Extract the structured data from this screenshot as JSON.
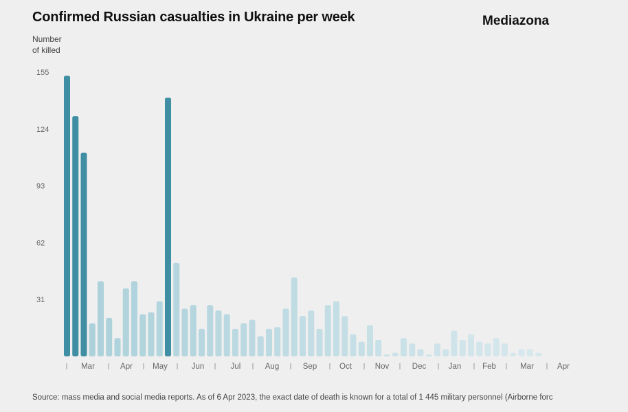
{
  "title": "Confirmed Russian casualties in Ukraine per week",
  "brand": "Mediazona",
  "y_axis_label": [
    "Number",
    "of killed"
  ],
  "footer": "Source: mass media and social media reports. As of 6 Apr 2023, the exact date of death is known for a total of 1 445 military personnel (Airborne forc",
  "colors": {
    "dark": "#3f8ea3",
    "background": "#efefef",
    "tick_text": "#666"
  },
  "chart_data": {
    "type": "bar",
    "ylabel": "Number of killed",
    "ylim": [
      0,
      155
    ],
    "yticks": [
      31,
      62,
      93,
      124,
      155
    ],
    "months": [
      "Mar",
      "Apr",
      "May",
      "Jun",
      "Jul",
      "Aug",
      "Sep",
      "Oct",
      "Nov",
      "Dec",
      "Jan",
      "Feb",
      "Mar",
      "Apr"
    ],
    "values": [
      153,
      131,
      111,
      18,
      41,
      21,
      10,
      37,
      41,
      23,
      24,
      30,
      141,
      51,
      26,
      28,
      15,
      28,
      25,
      23,
      15,
      18,
      20,
      11,
      15,
      16,
      26,
      43,
      22,
      25,
      15,
      28,
      30,
      22,
      12,
      8,
      17,
      9,
      1,
      2,
      10,
      7,
      4,
      1,
      7,
      4,
      14,
      9,
      12,
      8,
      7,
      10,
      7,
      2,
      4,
      4,
      2,
      0,
      0
    ],
    "highlight": [
      0,
      1,
      2,
      12
    ]
  }
}
